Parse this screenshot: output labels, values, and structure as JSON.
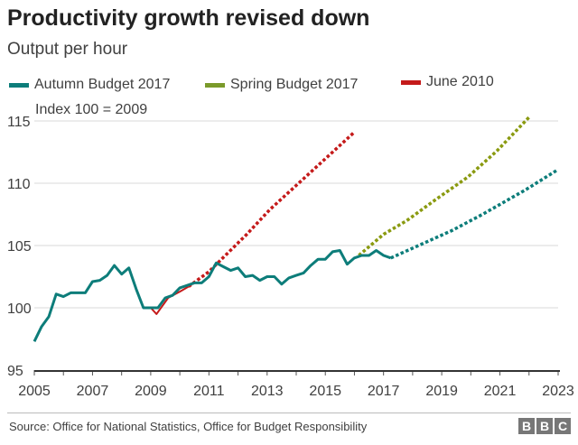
{
  "header": {
    "title": "Productivity growth revised down",
    "subtitle": "Output per hour"
  },
  "footer": {
    "source": "Source: Office for National Statistics, Office for Budget Responsibility",
    "logo": "BBC"
  },
  "chart_data": {
    "type": "line",
    "title": "Productivity growth revised down",
    "subtitle": "Output per hour",
    "annotation": "Index 100 = 2009",
    "xlim": [
      2005,
      2023
    ],
    "ylim": [
      95,
      115
    ],
    "x_ticks": [
      "2005",
      "2007",
      "2009",
      "2011",
      "2013",
      "2015",
      "2017",
      "2019",
      "2021",
      "2023"
    ],
    "y_ticks": [
      "95",
      "100",
      "105",
      "110",
      "115"
    ],
    "grid": true,
    "legend_position": "top",
    "series": [
      {
        "name": "Autumn Budget 2017",
        "color": "#0d7d7a",
        "actual": [
          [
            2005.0,
            97.3
          ],
          [
            2005.25,
            98.5
          ],
          [
            2005.5,
            99.3
          ],
          [
            2005.75,
            101.1
          ],
          [
            2006.0,
            100.9
          ],
          [
            2006.25,
            101.2
          ],
          [
            2006.5,
            101.2
          ],
          [
            2006.75,
            101.2
          ],
          [
            2007.0,
            102.1
          ],
          [
            2007.25,
            102.2
          ],
          [
            2007.5,
            102.6
          ],
          [
            2007.75,
            103.4
          ],
          [
            2008.0,
            102.7
          ],
          [
            2008.25,
            103.2
          ],
          [
            2008.5,
            101.5
          ],
          [
            2008.75,
            100.0
          ],
          [
            2009.0,
            100.0
          ],
          [
            2009.25,
            100.0
          ],
          [
            2009.5,
            100.8
          ],
          [
            2009.75,
            101.0
          ],
          [
            2010.0,
            101.6
          ],
          [
            2010.25,
            101.8
          ],
          [
            2010.5,
            102.0
          ],
          [
            2010.75,
            102.0
          ],
          [
            2011.0,
            102.5
          ],
          [
            2011.25,
            103.6
          ],
          [
            2011.5,
            103.3
          ],
          [
            2011.75,
            103.0
          ],
          [
            2012.0,
            103.2
          ],
          [
            2012.25,
            102.5
          ],
          [
            2012.5,
            102.6
          ],
          [
            2012.75,
            102.2
          ],
          [
            2013.0,
            102.5
          ],
          [
            2013.25,
            102.5
          ],
          [
            2013.5,
            101.9
          ],
          [
            2013.75,
            102.4
          ],
          [
            2014.0,
            102.6
          ],
          [
            2014.25,
            102.8
          ],
          [
            2014.5,
            103.4
          ],
          [
            2014.75,
            103.9
          ],
          [
            2015.0,
            103.9
          ],
          [
            2015.25,
            104.5
          ],
          [
            2015.5,
            104.6
          ],
          [
            2015.75,
            103.5
          ],
          [
            2016.0,
            104.0
          ],
          [
            2016.25,
            104.2
          ],
          [
            2016.5,
            104.2
          ],
          [
            2016.75,
            104.6
          ],
          [
            2017.0,
            104.2
          ],
          [
            2017.25,
            104.0
          ]
        ],
        "forecast": [
          [
            2017.25,
            104.0
          ],
          [
            2018.3,
            105.1
          ],
          [
            2019.35,
            106.2
          ],
          [
            2020.4,
            107.5
          ],
          [
            2021.9,
            109.5
          ],
          [
            2023.0,
            111.1
          ]
        ]
      },
      {
        "name": "Spring Budget 2017",
        "color": "#8a9a10",
        "actual": [],
        "forecast": [
          [
            2016.15,
            104.2
          ],
          [
            2017.0,
            105.9
          ],
          [
            2017.8,
            107.0
          ],
          [
            2018.8,
            108.7
          ],
          [
            2019.9,
            110.5
          ],
          [
            2020.9,
            112.6
          ],
          [
            2022.0,
            115.3
          ]
        ]
      },
      {
        "name": "June 2010",
        "color": "#c41a1a",
        "actual": [
          [
            2009.0,
            100.0
          ],
          [
            2009.2,
            99.5
          ],
          [
            2009.6,
            100.8
          ],
          [
            2010.0,
            101.3
          ],
          [
            2010.3,
            101.7
          ]
        ],
        "forecast": [
          [
            2010.3,
            101.7
          ],
          [
            2011.0,
            102.9
          ],
          [
            2012.3,
            105.9
          ],
          [
            2013.1,
            107.9
          ],
          [
            2016.0,
            114.1
          ]
        ]
      }
    ]
  }
}
